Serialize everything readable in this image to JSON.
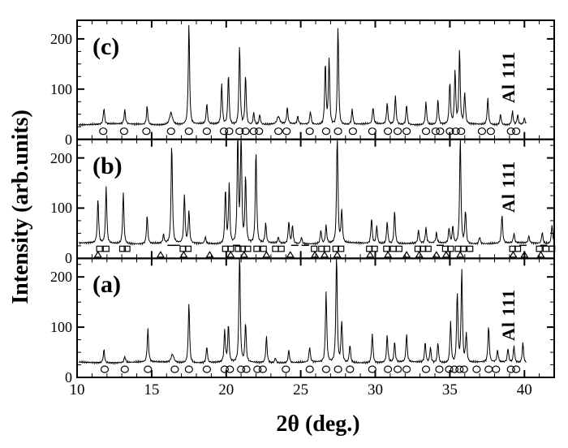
{
  "figure": {
    "background": "#ffffff",
    "ink": "#000000"
  },
  "chart_data": {
    "type": "line",
    "title": "",
    "xlabel": "2θ (deg.)",
    "ylabel": "Intensity (arb.units)",
    "x_range": [
      10,
      42
    ],
    "x_major_ticks": [
      10,
      15,
      20,
      25,
      30,
      35,
      40
    ],
    "x_minor_step": 1,
    "y_max": 237,
    "y_major_ticks": [
      0,
      100,
      200
    ],
    "y_minor_step": 25,
    "baseline": 30,
    "grid": false,
    "legend": "none",
    "peaks_format": "[two_theta_deg, amplitude_above_baseline, optional_width_deg]",
    "panels": [
      {
        "label": "(c)",
        "annotation": "Al 111",
        "x_start": 10.1,
        "x_end": 40.15,
        "peaks": [
          [
            11.8,
            32
          ],
          [
            13.2,
            28
          ],
          [
            14.7,
            36
          ],
          [
            16.3,
            24,
            0.13
          ],
          [
            17.5,
            200
          ],
          [
            18.7,
            40
          ],
          [
            19.7,
            80
          ],
          [
            20.15,
            100
          ],
          [
            20.9,
            158
          ],
          [
            21.3,
            98
          ],
          [
            21.85,
            24
          ],
          [
            22.25,
            20
          ],
          [
            23.5,
            15,
            0.12
          ],
          [
            24.1,
            32
          ],
          [
            24.8,
            15
          ],
          [
            25.65,
            26
          ],
          [
            26.65,
            122
          ],
          [
            26.9,
            131
          ],
          [
            27.5,
            196
          ],
          [
            28.45,
            30
          ],
          [
            29.85,
            33
          ],
          [
            30.8,
            42
          ],
          [
            31.35,
            57
          ],
          [
            32.1,
            40
          ],
          [
            33.4,
            45
          ],
          [
            34.2,
            49
          ],
          [
            35.0,
            82
          ],
          [
            35.35,
            106
          ],
          [
            35.65,
            147
          ],
          [
            36.0,
            62
          ],
          [
            37.55,
            52
          ],
          [
            38.4,
            21
          ],
          [
            39.2,
            27
          ],
          [
            39.55,
            19
          ],
          [
            40.0,
            12
          ]
        ],
        "circles": [
          11.75,
          13.15,
          14.65,
          16.3,
          17.5,
          18.7,
          19.85,
          20.2,
          20.9,
          21.3,
          21.85,
          22.2,
          23.5,
          24.05,
          25.6,
          26.7,
          27.5,
          28.5,
          29.8,
          30.85,
          31.5,
          32.1,
          33.4,
          34.05,
          34.35,
          35.0,
          35.4,
          35.75,
          37.15,
          37.75,
          39.1,
          39.45
        ]
      },
      {
        "label": "(b)",
        "annotation": "Al 111",
        "x_start": 10.1,
        "x_end": 41.95,
        "peaks": [
          [
            11.4,
            88
          ],
          [
            11.95,
            112
          ],
          [
            13.1,
            101
          ],
          [
            14.7,
            56
          ],
          [
            15.8,
            17
          ],
          [
            16.35,
            198
          ],
          [
            17.2,
            97
          ],
          [
            17.5,
            64
          ],
          [
            18.6,
            13
          ],
          [
            19.95,
            108
          ],
          [
            20.2,
            119
          ],
          [
            20.78,
            225
          ],
          [
            21.0,
            220
          ],
          [
            21.3,
            134
          ],
          [
            22.0,
            185
          ],
          [
            22.65,
            39
          ],
          [
            23.5,
            12
          ],
          [
            24.2,
            44
          ],
          [
            24.45,
            36
          ],
          [
            25.05,
            13
          ],
          [
            26.35,
            27
          ],
          [
            26.7,
            35
          ],
          [
            27.45,
            225
          ],
          [
            27.75,
            64
          ],
          [
            29.75,
            50
          ],
          [
            30.1,
            35
          ],
          [
            30.8,
            44
          ],
          [
            31.3,
            66
          ],
          [
            32.9,
            26
          ],
          [
            33.4,
            30
          ],
          [
            34.1,
            20
          ],
          [
            34.95,
            30
          ],
          [
            35.2,
            34
          ],
          [
            35.7,
            215
          ],
          [
            36.05,
            65
          ],
          [
            37.0,
            14
          ],
          [
            38.5,
            57
          ],
          [
            39.3,
            19
          ],
          [
            40.3,
            14
          ],
          [
            41.2,
            22
          ],
          [
            41.85,
            38
          ]
        ],
        "squares": [
          11.5,
          11.95,
          13.05,
          13.35,
          17.1,
          17.45,
          19.95,
          20.3,
          20.8,
          21.1,
          21.45,
          22.05,
          22.5,
          23.3,
          23.7,
          25.9,
          26.4,
          26.75,
          27.35,
          27.7,
          29.6,
          29.95,
          30.75,
          31.2,
          31.6,
          32.85,
          33.2,
          33.55,
          34.7,
          35.05,
          35.55,
          35.9,
          36.35,
          39.2,
          39.55,
          41.0,
          41.45,
          41.85
        ],
        "triangles": [
          11.4,
          15.6,
          17.15,
          18.9,
          20.3,
          21.2,
          22.7,
          24.3,
          25.95,
          26.6,
          27.45,
          29.65,
          30.85,
          32.1,
          32.95,
          34.1,
          34.75,
          35.7,
          39.25,
          40.0,
          41.1
        ],
        "dashes": [
          16.3,
          16.65,
          20.7,
          24.6,
          25.3,
          34.35,
          39.9,
          41.3
        ]
      },
      {
        "label": "(a)",
        "annotation": "Al 111",
        "x_start": 10.1,
        "x_end": 40.15,
        "peaks": [
          [
            11.8,
            26
          ],
          [
            13.2,
            12
          ],
          [
            14.75,
            66
          ],
          [
            16.4,
            16,
            0.12
          ],
          [
            17.5,
            120
          ],
          [
            18.7,
            32
          ],
          [
            19.9,
            63
          ],
          [
            20.15,
            74
          ],
          [
            20.9,
            225
          ],
          [
            21.3,
            78
          ],
          [
            22.7,
            52
          ],
          [
            23.3,
            10
          ],
          [
            24.2,
            25
          ],
          [
            25.6,
            30
          ],
          [
            26.7,
            138
          ],
          [
            27.4,
            225
          ],
          [
            27.75,
            82
          ],
          [
            28.3,
            35
          ],
          [
            29.8,
            58
          ],
          [
            30.8,
            54
          ],
          [
            31.3,
            40
          ],
          [
            32.1,
            55
          ],
          [
            33.35,
            40
          ],
          [
            33.7,
            30
          ],
          [
            34.2,
            40
          ],
          [
            35.05,
            82
          ],
          [
            35.5,
            140
          ],
          [
            35.8,
            186
          ],
          [
            36.1,
            58
          ],
          [
            37.6,
            70
          ],
          [
            38.2,
            24
          ],
          [
            38.9,
            28
          ],
          [
            39.3,
            33
          ],
          [
            39.9,
            40
          ]
        ],
        "circles": [
          11.85,
          13.2,
          14.75,
          16.55,
          17.5,
          18.7,
          19.9,
          20.25,
          21.0,
          21.35,
          22.1,
          22.45,
          24.0,
          25.6,
          26.7,
          27.5,
          28.3,
          29.8,
          30.85,
          31.5,
          32.1,
          33.4,
          34.3,
          34.95,
          35.3,
          35.65,
          35.95,
          36.8,
          37.6,
          38.1,
          39.1,
          39.45
        ]
      }
    ]
  }
}
